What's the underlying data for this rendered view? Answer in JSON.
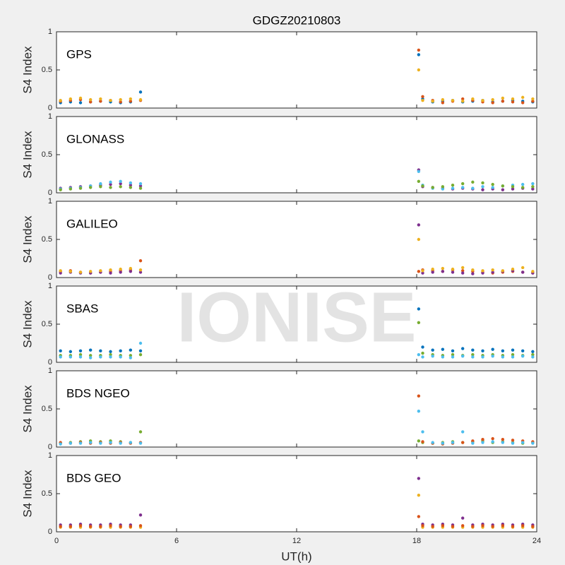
{
  "watermark": "IONISE",
  "chart_data": [
    {
      "type": "scatter",
      "title": "GDGZ20210803",
      "label": "GPS",
      "ylabel": "S4 Index",
      "xlim": [
        0,
        24
      ],
      "xticks": [
        0,
        6,
        12,
        18,
        24
      ],
      "ylim": [
        0,
        1
      ],
      "yticks": [
        0,
        0.5,
        1
      ],
      "x": [
        0.2,
        0.7,
        1.2,
        1.7,
        2.2,
        2.7,
        3.2,
        3.7,
        4.2,
        18.1,
        18.3,
        18.8,
        19.3,
        19.8,
        20.3,
        20.8,
        21.3,
        21.8,
        22.3,
        22.8,
        23.3,
        23.8
      ],
      "series": [
        {
          "color": "#0072BD",
          "values": [
            0.07,
            0.08,
            0.07,
            0.08,
            0.09,
            0.08,
            0.07,
            0.08,
            0.21,
            0.7,
            0.12,
            0.08,
            0.09,
            0.1,
            0.08,
            0.09,
            0.1,
            0.08,
            0.09,
            0.1,
            0.09,
            0.08
          ]
        },
        {
          "color": "#D95319",
          "values": [
            0.09,
            0.1,
            0.11,
            0.08,
            0.09,
            0.1,
            0.08,
            0.09,
            0.1,
            0.76,
            0.15,
            0.1,
            0.07,
            0.09,
            0.12,
            0.1,
            0.08,
            0.07,
            0.09,
            0.08,
            0.07,
            0.09
          ]
        },
        {
          "color": "#EDB120",
          "values": [
            0.1,
            0.12,
            0.13,
            0.11,
            0.12,
            0.1,
            0.11,
            0.12,
            0.11,
            0.5,
            0.1,
            0.09,
            0.11,
            0.1,
            0.09,
            0.12,
            0.1,
            0.11,
            0.13,
            0.12,
            0.14,
            0.12
          ]
        }
      ]
    },
    {
      "type": "scatter",
      "label": "GLONASS",
      "ylabel": "S4 Index",
      "xlim": [
        0,
        24
      ],
      "xticks": [
        0,
        6,
        12,
        18,
        24
      ],
      "ylim": [
        0,
        1
      ],
      "yticks": [
        0,
        0.5,
        1
      ],
      "x": [
        0.2,
        0.7,
        1.2,
        1.7,
        2.2,
        2.7,
        3.2,
        3.7,
        4.2,
        18.1,
        18.3,
        18.8,
        19.3,
        19.8,
        20.3,
        20.8,
        21.3,
        21.8,
        22.3,
        22.8,
        23.3,
        23.8
      ],
      "series": [
        {
          "color": "#7E2F8E",
          "values": [
            0.06,
            0.07,
            0.08,
            0.09,
            0.1,
            0.11,
            0.12,
            0.1,
            0.09,
            0.3,
            0.08,
            0.07,
            0.06,
            0.05,
            0.06,
            0.05,
            0.04,
            0.05,
            0.04,
            0.05,
            0.06,
            0.05
          ]
        },
        {
          "color": "#4DBEEE",
          "values": [
            0.05,
            0.06,
            0.07,
            0.09,
            0.12,
            0.14,
            0.15,
            0.13,
            0.12,
            0.28,
            0.1,
            0.06,
            0.05,
            0.06,
            0.07,
            0.06,
            0.08,
            0.07,
            0.09,
            0.1,
            0.11,
            0.12
          ]
        },
        {
          "color": "#77AC30",
          "values": [
            0.04,
            0.05,
            0.06,
            0.07,
            0.08,
            0.07,
            0.08,
            0.07,
            0.06,
            0.15,
            0.09,
            0.07,
            0.08,
            0.1,
            0.12,
            0.14,
            0.13,
            0.11,
            0.09,
            0.08,
            0.07,
            0.08
          ]
        }
      ]
    },
    {
      "type": "scatter",
      "label": "GALILEO",
      "ylabel": "S4 Index",
      "xlim": [
        0,
        24
      ],
      "xticks": [
        0,
        6,
        12,
        18,
        24
      ],
      "ylim": [
        0,
        1
      ],
      "yticks": [
        0,
        0.5,
        1
      ],
      "x": [
        0.2,
        0.7,
        1.2,
        1.7,
        2.2,
        2.7,
        3.2,
        3.7,
        4.2,
        18.1,
        18.3,
        18.8,
        19.3,
        19.8,
        20.3,
        20.8,
        21.3,
        21.8,
        22.3,
        22.8,
        23.3,
        23.8
      ],
      "series": [
        {
          "color": "#D95319",
          "values": [
            0.08,
            0.09,
            0.07,
            0.06,
            0.07,
            0.08,
            0.09,
            0.1,
            0.22,
            0.08,
            0.1,
            0.09,
            0.08,
            0.1,
            0.09,
            0.08,
            0.07,
            0.06,
            0.07,
            0.08,
            0.07,
            0.06
          ]
        },
        {
          "color": "#7E2F8E",
          "values": [
            0.06,
            0.07,
            0.06,
            0.06,
            0.07,
            0.06,
            0.07,
            0.08,
            0.07,
            0.69,
            0.06,
            0.07,
            0.08,
            0.07,
            0.06,
            0.05,
            0.06,
            0.07,
            0.08,
            0.09,
            0.07,
            0.06
          ]
        },
        {
          "color": "#EDB120",
          "values": [
            0.09,
            0.08,
            0.07,
            0.08,
            0.09,
            0.1,
            0.11,
            0.12,
            0.1,
            0.5,
            0.09,
            0.11,
            0.12,
            0.11,
            0.13,
            0.1,
            0.09,
            0.1,
            0.09,
            0.11,
            0.13,
            0.08
          ]
        }
      ]
    },
    {
      "type": "scatter",
      "label": "SBAS",
      "ylabel": "S4 Index",
      "xlim": [
        0,
        24
      ],
      "xticks": [
        0,
        6,
        12,
        18,
        24
      ],
      "ylim": [
        0,
        1
      ],
      "yticks": [
        0,
        0.5,
        1
      ],
      "x": [
        0.2,
        0.7,
        1.2,
        1.7,
        2.2,
        2.7,
        3.2,
        3.7,
        4.2,
        18.1,
        18.3,
        18.8,
        19.3,
        19.8,
        20.3,
        20.8,
        21.3,
        21.8,
        22.3,
        22.8,
        23.3,
        23.8
      ],
      "series": [
        {
          "color": "#0072BD",
          "values": [
            0.15,
            0.14,
            0.15,
            0.16,
            0.15,
            0.14,
            0.15,
            0.16,
            0.15,
            0.7,
            0.2,
            0.16,
            0.17,
            0.15,
            0.18,
            0.16,
            0.15,
            0.17,
            0.15,
            0.16,
            0.15,
            0.14
          ]
        },
        {
          "color": "#77AC30",
          "values": [
            0.09,
            0.09,
            0.1,
            0.09,
            0.09,
            0.1,
            0.09,
            0.09,
            0.1,
            0.52,
            0.12,
            0.1,
            0.09,
            0.1,
            0.09,
            0.1,
            0.09,
            0.1,
            0.09,
            0.1,
            0.09,
            0.1
          ]
        },
        {
          "color": "#4DBEEE",
          "values": [
            0.07,
            0.07,
            0.07,
            0.06,
            0.07,
            0.07,
            0.07,
            0.06,
            0.25,
            0.1,
            0.07,
            0.08,
            0.07,
            0.07,
            0.08,
            0.07,
            0.07,
            0.08,
            0.07,
            0.07,
            0.08,
            0.07
          ]
        }
      ]
    },
    {
      "type": "scatter",
      "label": "BDS NGEO",
      "ylabel": "S4 Index",
      "xlim": [
        0,
        24
      ],
      "xticks": [
        0,
        6,
        12,
        18,
        24
      ],
      "ylim": [
        0,
        1
      ],
      "yticks": [
        0,
        0.5,
        1
      ],
      "x": [
        0.2,
        0.7,
        1.2,
        1.7,
        2.2,
        2.7,
        3.2,
        3.7,
        4.2,
        18.1,
        18.3,
        18.8,
        19.3,
        19.8,
        20.3,
        20.8,
        21.3,
        21.8,
        22.3,
        22.8,
        23.3,
        23.8
      ],
      "series": [
        {
          "color": "#77AC30",
          "values": [
            0.05,
            0.06,
            0.07,
            0.08,
            0.07,
            0.08,
            0.07,
            0.06,
            0.2,
            0.08,
            0.06,
            0.05,
            0.06,
            0.07,
            0.06,
            0.07,
            0.08,
            0.06,
            0.07,
            0.06,
            0.05,
            0.06
          ]
        },
        {
          "color": "#D95319",
          "values": [
            0.06,
            0.05,
            0.06,
            0.05,
            0.06,
            0.05,
            0.06,
            0.05,
            0.06,
            0.67,
            0.07,
            0.05,
            0.04,
            0.05,
            0.06,
            0.08,
            0.1,
            0.11,
            0.1,
            0.09,
            0.08,
            0.07
          ]
        },
        {
          "color": "#4DBEEE",
          "values": [
            0.04,
            0.05,
            0.05,
            0.06,
            0.05,
            0.06,
            0.05,
            0.06,
            0.05,
            0.47,
            0.2,
            0.06,
            0.05,
            0.06,
            0.2,
            0.05,
            0.06,
            0.07,
            0.06,
            0.05,
            0.06,
            0.05
          ]
        }
      ]
    },
    {
      "type": "scatter",
      "label": "BDS GEO",
      "ylabel": "S4 Index",
      "xlabel": "UT(h)",
      "xlim": [
        0,
        24
      ],
      "xticks": [
        0,
        6,
        12,
        18,
        24
      ],
      "ylim": [
        0,
        1
      ],
      "yticks": [
        0,
        0.5,
        1
      ],
      "x": [
        0.2,
        0.7,
        1.2,
        1.7,
        2.2,
        2.7,
        3.2,
        3.7,
        4.2,
        18.1,
        18.3,
        18.8,
        19.3,
        19.8,
        20.3,
        20.8,
        21.3,
        21.8,
        22.3,
        22.8,
        23.3,
        23.8
      ],
      "series": [
        {
          "color": "#7E2F8E",
          "values": [
            0.09,
            0.09,
            0.1,
            0.09,
            0.09,
            0.1,
            0.09,
            0.09,
            0.22,
            0.7,
            0.1,
            0.09,
            0.1,
            0.09,
            0.18,
            0.09,
            0.1,
            0.09,
            0.1,
            0.09,
            0.1,
            0.09
          ]
        },
        {
          "color": "#EDB120",
          "values": [
            0.06,
            0.06,
            0.06,
            0.06,
            0.06,
            0.06,
            0.06,
            0.06,
            0.06,
            0.48,
            0.06,
            0.06,
            0.06,
            0.06,
            0.06,
            0.06,
            0.06,
            0.06,
            0.06,
            0.06,
            0.06,
            0.06
          ]
        },
        {
          "color": "#D95319",
          "values": [
            0.07,
            0.07,
            0.08,
            0.07,
            0.07,
            0.08,
            0.07,
            0.07,
            0.08,
            0.2,
            0.08,
            0.07,
            0.08,
            0.07,
            0.08,
            0.07,
            0.08,
            0.07,
            0.08,
            0.07,
            0.08,
            0.07
          ]
        }
      ]
    }
  ]
}
